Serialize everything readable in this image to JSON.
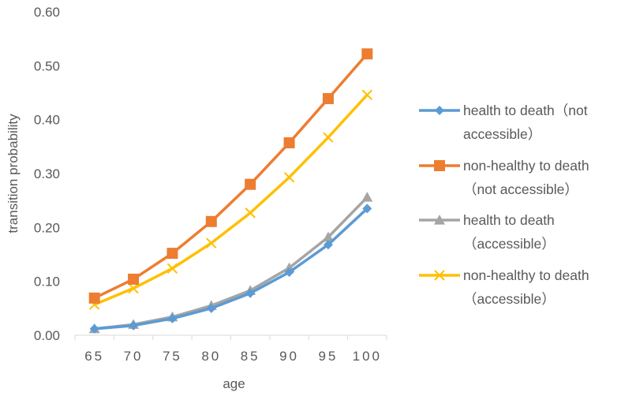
{
  "chart_data": {
    "type": "line",
    "title": "",
    "xlabel": "age",
    "ylabel": "transition probability",
    "categories": [
      "65",
      "70",
      "75",
      "80",
      "85",
      "90",
      "95",
      "100"
    ],
    "ylim": [
      0,
      0.6
    ],
    "yticks": [
      "0.00",
      "0.10",
      "0.20",
      "0.30",
      "0.40",
      "0.50",
      "0.60"
    ],
    "grid": false,
    "legend_position": "right",
    "series": [
      {
        "name": "health to death (not accessible)",
        "legend_lines": [
          "health to death（not",
          "accessible）"
        ],
        "color": "#5B9BD5",
        "marker": "diamond",
        "values": [
          0.012,
          0.018,
          0.031,
          0.05,
          0.078,
          0.117,
          0.168,
          0.235
        ]
      },
      {
        "name": "non-healthy to death (not accessible)",
        "legend_lines": [
          "non-healthy to death",
          "（not accessible）"
        ],
        "color": "#ED7D31",
        "marker": "square",
        "values": [
          0.069,
          0.104,
          0.152,
          0.211,
          0.28,
          0.357,
          0.439,
          0.522
        ]
      },
      {
        "name": "health to death (accessible)",
        "legend_lines": [
          "health to death",
          "（accessible）"
        ],
        "color": "#A5A5A5",
        "marker": "triangle",
        "values": [
          0.012,
          0.02,
          0.034,
          0.055,
          0.083,
          0.125,
          0.182,
          0.256
        ]
      },
      {
        "name": "non-healthy to death (accessible)",
        "legend_lines": [
          "non-healthy to death",
          "（accessible）"
        ],
        "color": "#FFC000",
        "marker": "x",
        "values": [
          0.057,
          0.087,
          0.124,
          0.171,
          0.227,
          0.293,
          0.367,
          0.446
        ]
      }
    ]
  }
}
